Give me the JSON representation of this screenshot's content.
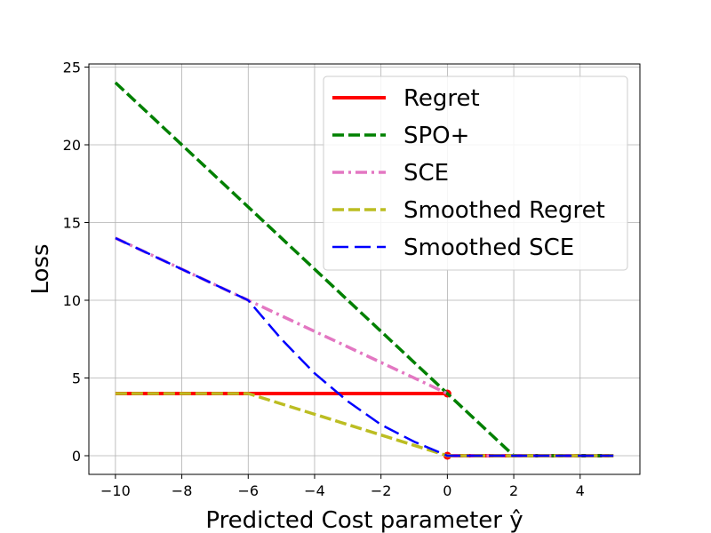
{
  "chart_data": {
    "type": "line",
    "xlabel": "Predicted Cost parameter ŷ",
    "ylabel": "Loss",
    "xlim": [
      -10.8,
      5.8
    ],
    "ylim": [
      -1.2,
      25.2
    ],
    "xticks": [
      -10,
      -8,
      -6,
      -4,
      -2,
      0,
      2,
      4
    ],
    "xtick_labels": [
      "−10",
      "−8",
      "−6",
      "−4",
      "−2",
      "0",
      "2",
      "4"
    ],
    "yticks": [
      0,
      5,
      10,
      15,
      20,
      25
    ],
    "ytick_labels": [
      "0",
      "5",
      "10",
      "15",
      "20",
      "25"
    ],
    "grid": true,
    "legend_position": "top-right",
    "series": [
      {
        "name": "Regret",
        "color": "#ff0000",
        "style": "solid",
        "segments": [
          [
            [
              -10,
              4
            ],
            [
              0,
              4
            ]
          ],
          [
            [
              0,
              0
            ],
            [
              5,
              0
            ]
          ]
        ],
        "markers": [
          [
            0,
            4
          ],
          [
            0,
            0
          ]
        ]
      },
      {
        "name": "SPO+",
        "color": "#008000",
        "style": "dashed",
        "segments": [
          [
            [
              -10,
              24
            ],
            [
              0,
              4
            ],
            [
              2,
              0
            ],
            [
              5,
              0
            ]
          ]
        ]
      },
      {
        "name": "SCE",
        "color": "#e377c2",
        "style": "dashdot",
        "segments": [
          [
            [
              -10,
              14
            ],
            [
              -6,
              10
            ],
            [
              0,
              4
            ]
          ],
          [
            [
              0,
              0
            ],
            [
              5,
              0
            ]
          ]
        ]
      },
      {
        "name": "Smoothed Regret",
        "color": "#bcbd22",
        "style": "dashed",
        "segments": [
          [
            [
              -10,
              4
            ],
            [
              -6,
              4
            ],
            [
              0,
              0
            ],
            [
              5,
              0
            ]
          ]
        ]
      },
      {
        "name": "Smoothed SCE",
        "color": "#0000ff",
        "style": "longdash",
        "segments": [
          [
            [
              -10,
              14
            ],
            [
              -6,
              10
            ],
            [
              -5,
              7.5
            ],
            [
              -4,
              5.3
            ],
            [
              -3,
              3.5
            ],
            [
              -2,
              2
            ],
            [
              -1,
              0.9
            ],
            [
              0,
              0
            ],
            [
              5,
              0
            ]
          ]
        ]
      }
    ]
  }
}
